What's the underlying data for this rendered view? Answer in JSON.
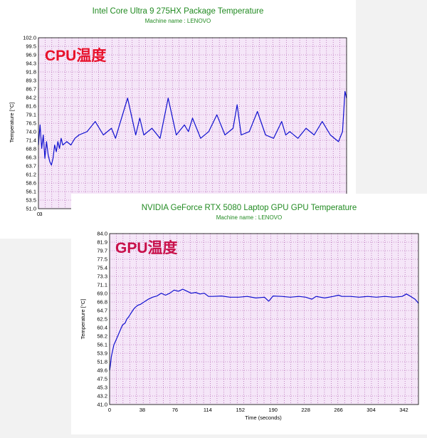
{
  "chart_data": [
    {
      "type": "line",
      "title": "Intel Core Ultra 9 275HX Package Temperature",
      "subtitle": "Machine name : LENOVO",
      "overlay_label": "CPU温度",
      "ylabel": "Temperature [°C]",
      "xlabel": "",
      "ylim": [
        51.0,
        102.0
      ],
      "xlim": [
        0,
        380
      ],
      "yticks": [
        "102.0",
        "99.5",
        "96.9",
        "94.3",
        "91.8",
        "89.3",
        "86.7",
        "84.2",
        "81.6",
        "79.1",
        "76.5",
        "74.0",
        "71.4",
        "68.8",
        "66.3",
        "63.7",
        "61.2",
        "58.6",
        "56.1",
        "53.5",
        "51.0"
      ],
      "xticks": [
        "0",
        "3"
      ],
      "grid": true,
      "colors": {
        "line": "#1010d0",
        "plot_bg": "#f5e6f8",
        "grid": "#a040a0",
        "title": "#228b22"
      },
      "series": [
        {
          "x": [
            0,
            2,
            4,
            6,
            8,
            10,
            12,
            14,
            16,
            18,
            20,
            22,
            24,
            26,
            28,
            30,
            35,
            40,
            45,
            50,
            60,
            70,
            80,
            90,
            95,
            100,
            110,
            120,
            125,
            130,
            140,
            150,
            160,
            170,
            180,
            185,
            190,
            200,
            210,
            220,
            230,
            240,
            245,
            250,
            260,
            270,
            280,
            290,
            300,
            305,
            310,
            320,
            330,
            340,
            350,
            360,
            370,
            375,
            378,
            380
          ],
          "values": [
            70,
            76,
            69,
            73,
            66,
            71,
            67,
            65,
            64,
            66,
            70,
            68,
            71,
            69,
            72,
            70,
            71,
            70,
            72,
            73,
            74,
            77,
            73,
            75,
            72,
            76,
            84,
            73,
            78,
            73,
            75,
            72,
            84,
            73,
            76,
            74,
            78,
            72,
            74,
            79,
            73,
            75,
            82,
            73,
            74,
            80,
            73,
            72,
            77,
            73,
            74,
            72,
            75,
            73,
            77,
            73,
            71,
            74,
            86,
            84
          ]
        }
      ]
    },
    {
      "type": "line",
      "title": "NVIDIA GeForce RTX 5080 Laptop GPU GPU Temperature",
      "subtitle": "Machine name : LENOVO",
      "overlay_label": "GPU温度",
      "ylabel": "Temperature [°C]",
      "xlabel": "Time (seconds)",
      "ylim": [
        41.0,
        84.0
      ],
      "xlim": [
        0,
        359
      ],
      "yticks": [
        "84.0",
        "81.9",
        "79.7",
        "77.5",
        "75.4",
        "73.3",
        "71.1",
        "69.0",
        "66.8",
        "64.7",
        "62.5",
        "60.4",
        "58.2",
        "56.1",
        "53.9",
        "51.8",
        "49.6",
        "47.5",
        "45.3",
        "43.2",
        "41.0"
      ],
      "xticks": [
        "0",
        "38",
        "76",
        "114",
        "152",
        "190",
        "228",
        "266",
        "304",
        "342"
      ],
      "grid": true,
      "colors": {
        "line": "#1010d0",
        "plot_bg": "#f5e6f8",
        "grid": "#a040a0",
        "title": "#228b22"
      },
      "series": [
        {
          "x": [
            0,
            1,
            2,
            3,
            5,
            7,
            10,
            12,
            15,
            18,
            20,
            22,
            25,
            28,
            30,
            33,
            36,
            40,
            45,
            50,
            55,
            60,
            65,
            70,
            75,
            80,
            85,
            90,
            95,
            100,
            105,
            110,
            115,
            120,
            130,
            140,
            150,
            160,
            170,
            180,
            185,
            190,
            200,
            210,
            220,
            228,
            235,
            240,
            250,
            260,
            266,
            270,
            280,
            290,
            300,
            310,
            320,
            330,
            340,
            345,
            350,
            355,
            359
          ],
          "values": [
            49.6,
            51,
            53,
            54,
            56,
            57,
            58.5,
            59.5,
            61,
            61.5,
            62.5,
            63,
            64,
            65,
            65.5,
            66,
            66.2,
            66.8,
            67.5,
            68,
            68.3,
            69,
            68.5,
            69,
            69.8,
            69.5,
            70,
            69.5,
            69,
            69.2,
            68.8,
            69,
            68.2,
            68.2,
            68.3,
            68,
            68,
            68.2,
            67.8,
            68,
            67,
            68.3,
            68.2,
            68,
            68.2,
            68,
            67.5,
            68.2,
            67.8,
            68.2,
            68.5,
            68.2,
            68.2,
            68,
            68.2,
            68,
            68.2,
            68,
            68.2,
            68.8,
            68.2,
            67.5,
            66.5
          ]
        }
      ]
    }
  ]
}
